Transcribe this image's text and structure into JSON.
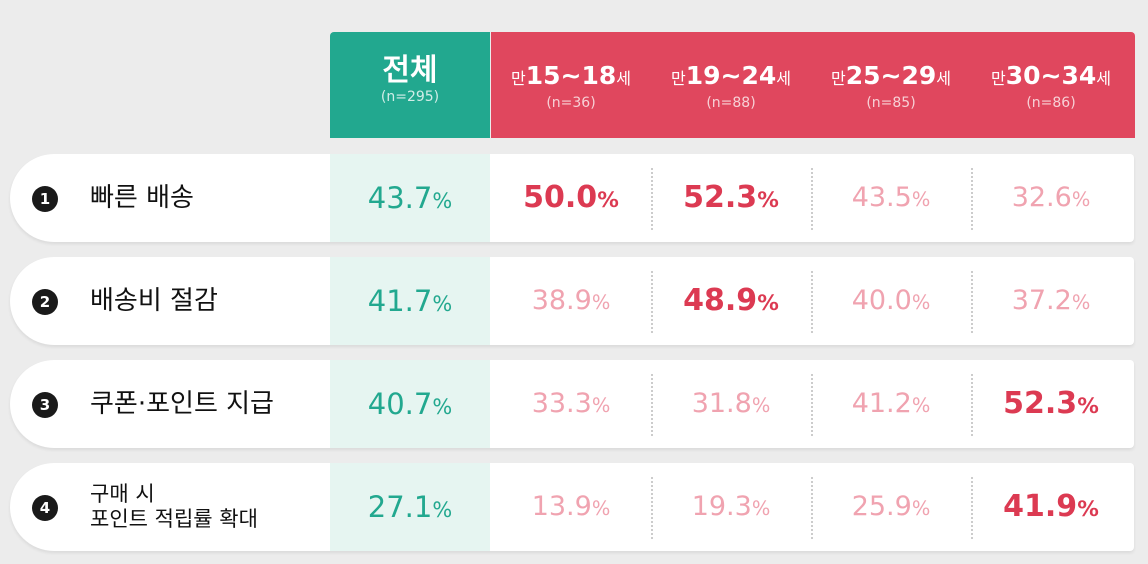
{
  "header": {
    "total": {
      "label": "전체",
      "n": "(n=295)"
    },
    "age_groups": [
      {
        "prefix": "만",
        "range": "15~18",
        "suffix": "세",
        "n": "(n=36)"
      },
      {
        "prefix": "만",
        "range": "19~24",
        "suffix": "세",
        "n": "(n=88)"
      },
      {
        "prefix": "만",
        "range": "25~29",
        "suffix": "세",
        "n": "(n=85)"
      },
      {
        "prefix": "만",
        "range": "30~34",
        "suffix": "세",
        "n": "(n=86)"
      }
    ]
  },
  "pct_sign": "%",
  "colors": {
    "total": "#22a88f",
    "age_header": "#e0475e",
    "highlight": "#dc3a52",
    "muted": "#f0a3b0"
  },
  "rows": [
    {
      "num": "1",
      "item": "빠른 배송",
      "total": "43.7",
      "values": [
        {
          "v": "50.0",
          "hl": true
        },
        {
          "v": "52.3",
          "hl": true
        },
        {
          "v": "43.5",
          "hl": false
        },
        {
          "v": "32.6",
          "hl": false
        }
      ]
    },
    {
      "num": "2",
      "item": "배송비 절감",
      "total": "41.7",
      "values": [
        {
          "v": "38.9",
          "hl": false
        },
        {
          "v": "48.9",
          "hl": true
        },
        {
          "v": "40.0",
          "hl": false
        },
        {
          "v": "37.2",
          "hl": false
        }
      ]
    },
    {
      "num": "3",
      "item": "쿠폰·포인트 지급",
      "total": "40.7",
      "values": [
        {
          "v": "33.3",
          "hl": false
        },
        {
          "v": "31.8",
          "hl": false
        },
        {
          "v": "41.2",
          "hl": false
        },
        {
          "v": "52.3",
          "hl": true
        }
      ]
    },
    {
      "num": "4",
      "item_lines": [
        "구매 시",
        "포인트 적립률 확대"
      ],
      "total": "27.1",
      "values": [
        {
          "v": "13.9",
          "hl": false
        },
        {
          "v": "19.3",
          "hl": false
        },
        {
          "v": "25.9",
          "hl": false
        },
        {
          "v": "41.9",
          "hl": true
        }
      ]
    }
  ]
}
